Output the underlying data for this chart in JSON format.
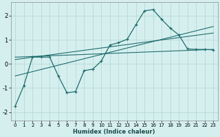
{
  "xlabel": "Humidex (Indice chaleur)",
  "bg_color": "#d5efef",
  "grid_color": "#b8d8d8",
  "line_color": "#1e6b6b",
  "xlim": [
    -0.5,
    23.5
  ],
  "ylim": [
    -2.35,
    2.55
  ],
  "xticks": [
    0,
    1,
    2,
    3,
    4,
    5,
    6,
    7,
    8,
    9,
    10,
    11,
    12,
    13,
    14,
    15,
    16,
    17,
    18,
    19,
    20,
    21,
    22,
    23
  ],
  "yticks": [
    -2,
    -1,
    0,
    1,
    2
  ],
  "main_x": [
    0,
    1,
    2,
    3,
    4,
    5,
    6,
    7,
    8,
    9,
    10,
    11,
    12,
    13,
    14,
    15,
    16,
    17,
    18,
    19,
    20,
    21,
    22,
    23
  ],
  "main_y": [
    -1.75,
    -0.9,
    0.28,
    0.28,
    0.28,
    -0.5,
    -1.2,
    -1.15,
    -0.28,
    -0.22,
    0.12,
    0.78,
    0.88,
    1.02,
    1.62,
    2.2,
    2.25,
    1.85,
    1.48,
    1.2,
    0.62,
    0.6,
    0.6,
    0.58
  ],
  "line1_x": [
    0,
    23
  ],
  "line1_y": [
    0.28,
    0.6
  ],
  "line2_x": [
    0,
    23
  ],
  "line2_y": [
    0.18,
    1.28
  ],
  "line3_x": [
    0,
    23
  ],
  "line3_y": [
    -0.5,
    1.55
  ]
}
